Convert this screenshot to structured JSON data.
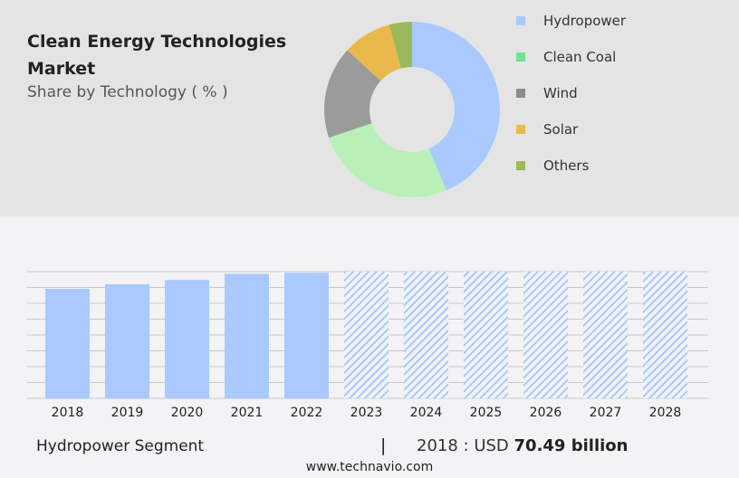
{
  "header": {
    "title": "Clean Energy Technologies Market",
    "subtitle": "Share by Technology ( % )"
  },
  "chart_data": [
    {
      "type": "pie",
      "variant": "donut",
      "title": "Share by Technology ( % )",
      "labels": [
        "Hydropower",
        "Clean Coal",
        "Wind",
        "Solar",
        "Others"
      ],
      "values": [
        43.6,
        26.2,
        17.0,
        9.0,
        4.2
      ],
      "colors": [
        "#a9c9ff",
        "#b8f0b8",
        "#9b9b9b",
        "#e8b94a",
        "#9cb95a"
      ],
      "legend_colors": [
        "#a9c9ff",
        "#6ee48e",
        "#8c8c8c",
        "#e8b94a",
        "#9cb95a"
      ],
      "legend": "right"
    },
    {
      "type": "bar",
      "categories": [
        "2018",
        "2019",
        "2020",
        "2021",
        "2022",
        "2023",
        "2024",
        "2025",
        "2026",
        "2027",
        "2028"
      ],
      "values": [
        70.49,
        73.4,
        76.2,
        80.2,
        80.8,
        null,
        null,
        null,
        null,
        null,
        null
      ],
      "forecast": [
        false,
        false,
        false,
        false,
        false,
        true,
        true,
        true,
        true,
        true,
        true
      ],
      "unit": "USD billion",
      "grid": true,
      "color": "#a9c9ff"
    }
  ],
  "footer": {
    "segment": "Hydropower Segment",
    "separator": "|",
    "value_prefix": "2018 : USD",
    "value": "70.49 billion",
    "url": "www.technavio.com"
  }
}
